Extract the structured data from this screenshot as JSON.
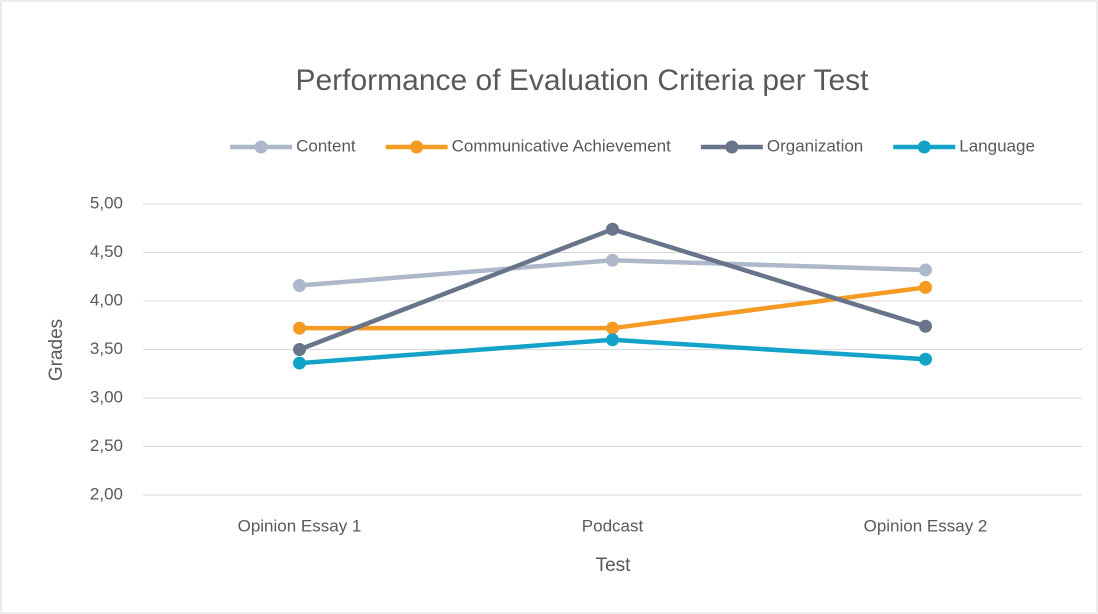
{
  "chart_data": {
    "type": "line",
    "title": "Performance of Evaluation Criteria per Test",
    "x_label": "Test",
    "y_label": "Grades",
    "categories": [
      "Opinion Essay 1",
      "Podcast",
      "Opinion Essay 2"
    ],
    "series": [
      {
        "name": "Content",
        "color": "#adb9ca",
        "values": [
          4.16,
          4.42,
          4.32
        ]
      },
      {
        "name": "Communicative Achievement",
        "color": "#f59a23",
        "values": [
          3.72,
          3.72,
          4.14
        ]
      },
      {
        "name": "Organization",
        "color": "#677489",
        "values": [
          3.5,
          4.74,
          3.74
        ]
      },
      {
        "name": "Language",
        "color": "#13a3c9",
        "values": [
          3.36,
          3.6,
          3.4
        ]
      }
    ],
    "ylim": [
      2,
      5
    ],
    "yticks": [
      {
        "value": 2,
        "label": "2,00"
      },
      {
        "value": 2.5,
        "label": "2,50"
      },
      {
        "value": 3,
        "label": "3,00"
      },
      {
        "value": 3.5,
        "label": "3,50"
      },
      {
        "value": 4,
        "label": "4,00"
      },
      {
        "value": 4.5,
        "label": "4,50"
      },
      {
        "value": 5,
        "label": "5,00"
      }
    ],
    "grid": true,
    "legend": "top"
  }
}
